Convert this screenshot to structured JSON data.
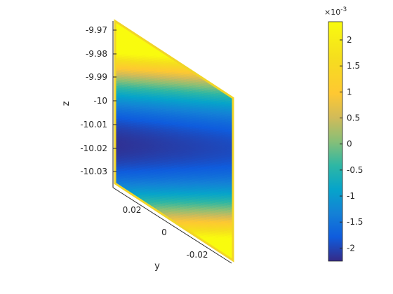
{
  "chart_data": {
    "type": "scatter",
    "subtype": "3d-surface-scatter",
    "title": "",
    "ylabel": "y",
    "zlabel": "z",
    "xlabel": "",
    "z_ticks": [
      "-9.97",
      "-9.98",
      "-9.99",
      "-10",
      "-10.01",
      "-10.02",
      "-10.03"
    ],
    "y_ticks": [
      "0.02",
      "0",
      "-0.02"
    ],
    "z_range": [
      -10.035,
      -9.966
    ],
    "y_range": [
      -0.03,
      0.03
    ],
    "colormap": "parula",
    "colorbar": {
      "exponent_label": "×10",
      "exponent_power": "-3",
      "ticks": [
        "2",
        "1.5",
        "1",
        "0.5",
        "0",
        "-0.5",
        "-1",
        "-1.5",
        "-2"
      ],
      "range": [
        -2.25,
        2.35
      ]
    },
    "colors": {
      "low": "#352a87",
      "high": "#f9fb0e"
    }
  }
}
